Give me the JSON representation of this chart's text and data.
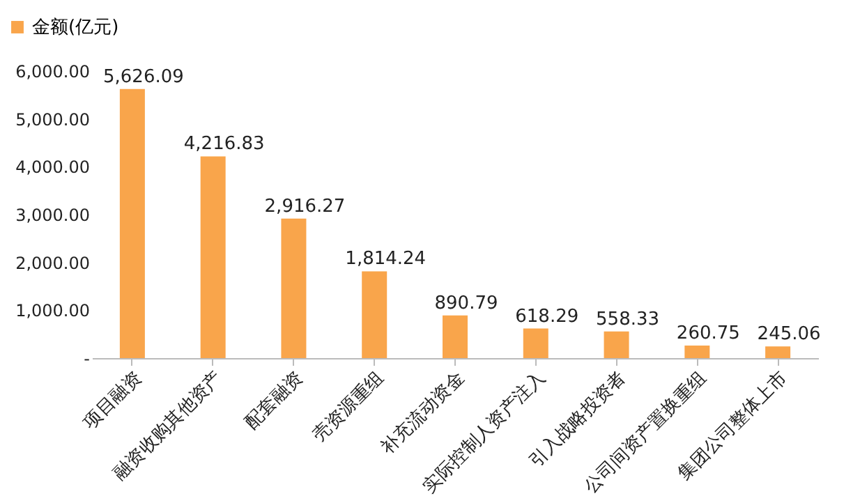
{
  "chart_data": {
    "type": "bar",
    "categories": [
      "项目融资",
      "融资收购其他资产",
      "配套融资",
      "壳资源重组",
      "补充流动资金",
      "实际控制人资产注入",
      "引入战略投资者",
      "公司间资产置换重组",
      "集团公司整体上市"
    ],
    "series": [
      {
        "name": "金额(亿元)",
        "color": "#f9a54b",
        "values": [
          5626.09,
          4216.83,
          2916.27,
          1814.24,
          890.79,
          618.29,
          558.33,
          260.75,
          245.06
        ],
        "value_labels": [
          "5,626.09",
          "4,216.83",
          "2,916.27",
          "1,814.24",
          "890.79",
          "618.29",
          "558.33",
          "260.75",
          "245.06"
        ]
      }
    ],
    "ylim": [
      0,
      6000
    ],
    "yticks": [
      {
        "value": 0,
        "label": "-"
      },
      {
        "value": 1000,
        "label": "1,000.00"
      },
      {
        "value": 2000,
        "label": "2,000.00"
      },
      {
        "value": 3000,
        "label": "3,000.00"
      },
      {
        "value": 4000,
        "label": "4,000.00"
      },
      {
        "value": 5000,
        "label": "5,000.00"
      },
      {
        "value": 6000,
        "label": "6,000.00"
      }
    ],
    "grid": false,
    "legend": "top left",
    "data_labels": true
  }
}
